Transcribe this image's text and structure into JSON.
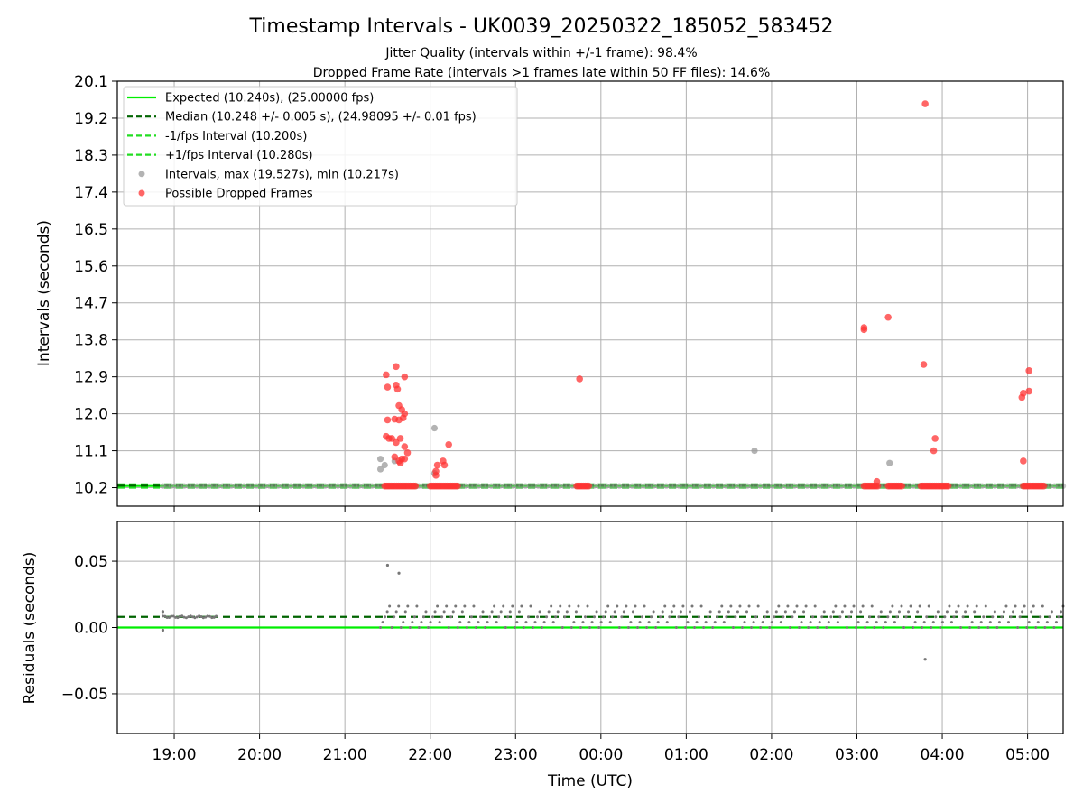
{
  "title": "Timestamp Intervals - UK0039_20250322_185052_583452",
  "subtitle_jitter": "Jitter Quality (intervals within +/-1 frame): 98.4%",
  "subtitle_dropped": "Dropped Frame Rate (intervals >1 frames late within 50 FF files): 14.6%",
  "colors": {
    "expected": "#00ee00",
    "median": "#006400",
    "bounds": "#22dd22",
    "interval_points": "#999999",
    "dropped_points": "#ff3333",
    "residual_points": "#777777",
    "grid": "#b0b0b0"
  },
  "chart_data": [
    {
      "type": "scatter",
      "ylabel": "Intervals (seconds)",
      "xlim": [
        "18:20",
        "05:25"
      ],
      "ylim": [
        9.75,
        20.1
      ],
      "yticks": [
        "10.2",
        "11.1",
        "12.0",
        "12.9",
        "13.8",
        "14.7",
        "15.6",
        "16.5",
        "17.4",
        "18.3",
        "19.2",
        "20.1"
      ],
      "grid": true,
      "legend_placement": "top-left",
      "legend": [
        "Expected (10.240s), (25.00000 fps)",
        "Median (10.248 +/- 0.005 s), (24.98095 +/- 0.01 fps)",
        "-1/fps Interval (10.200s)",
        "+1/fps Interval (10.280s)",
        "Intervals, max (19.527s), min (10.217s)",
        "Possible Dropped Frames"
      ],
      "lines": {
        "expected": 10.24,
        "median": 10.248,
        "lower": 10.2,
        "upper": 10.28
      },
      "series": [
        {
          "name": "Intervals, max (19.527s), min (10.217s)",
          "points": [
            [
              "21:25",
              10.9
            ],
            [
              "21:25",
              10.65
            ],
            [
              "21:28",
              10.75
            ],
            [
              "22:03",
              11.65
            ],
            [
              "22:03",
              10.55
            ],
            [
              "01:48",
              11.1
            ],
            [
              "03:23",
              10.8
            ],
            [
              "21:35",
              10.85
            ]
          ]
        },
        {
          "name": "Possible Dropped Frames",
          "points": [
            [
              "21:29",
              12.95
            ],
            [
              "21:30",
              12.65
            ],
            [
              "21:36",
              13.15
            ],
            [
              "21:36",
              12.7
            ],
            [
              "21:37",
              12.6
            ],
            [
              "21:42",
              12.9
            ],
            [
              "21:38",
              12.2
            ],
            [
              "21:40",
              12.1
            ],
            [
              "21:42",
              12.0
            ],
            [
              "21:41",
              11.9
            ],
            [
              "21:30",
              11.85
            ],
            [
              "21:35",
              11.87
            ],
            [
              "21:38",
              11.85
            ],
            [
              "21:29",
              11.45
            ],
            [
              "21:31",
              11.4
            ],
            [
              "21:33",
              11.4
            ],
            [
              "21:36",
              11.3
            ],
            [
              "21:39",
              11.4
            ],
            [
              "21:42",
              11.2
            ],
            [
              "21:44",
              11.05
            ],
            [
              "21:35",
              10.95
            ],
            [
              "21:38",
              10.85
            ],
            [
              "21:40",
              10.9
            ],
            [
              "21:42",
              10.9
            ],
            [
              "21:39",
              10.8
            ],
            [
              "22:05",
              10.75
            ],
            [
              "22:09",
              10.85
            ],
            [
              "22:10",
              10.75
            ],
            [
              "22:04",
              10.6
            ],
            [
              "22:04",
              10.5
            ],
            [
              "22:13",
              11.25
            ],
            [
              "23:45",
              12.85
            ],
            [
              "03:05",
              14.1
            ],
            [
              "03:05",
              14.05
            ],
            [
              "03:22",
              14.35
            ],
            [
              "03:47",
              13.2
            ],
            [
              "03:48",
              19.55
            ],
            [
              "03:55",
              11.4
            ],
            [
              "03:54",
              11.1
            ],
            [
              "04:56",
              12.4
            ],
            [
              "04:57",
              12.5
            ],
            [
              "05:01",
              13.05
            ],
            [
              "05:01",
              12.55
            ],
            [
              "04:57",
              10.85
            ],
            [
              "03:14",
              10.35
            ]
          ],
          "baseline_clusters": [
            [
              "21:28",
              "21:50",
              10.24
            ],
            [
              "22:00",
              "22:20",
              10.24
            ],
            [
              "23:43",
              "23:52",
              10.24
            ],
            [
              "03:05",
              "03:15",
              10.24
            ],
            [
              "03:22",
              "03:32",
              10.24
            ],
            [
              "03:45",
              "04:05",
              10.24
            ],
            [
              "04:57",
              "05:12",
              10.24
            ]
          ]
        }
      ]
    },
    {
      "type": "scatter",
      "xlabel": "Time (UTC)",
      "ylabel": "Residuals (seconds)",
      "xlim": [
        "18:20",
        "05:25"
      ],
      "ylim": [
        -0.08,
        0.08
      ],
      "yticks": [
        "−0.05",
        "0.00",
        "0.05"
      ],
      "xticks": [
        "19:00",
        "20:00",
        "21:00",
        "22:00",
        "23:00",
        "00:00",
        "01:00",
        "02:00",
        "03:00",
        "04:00",
        "05:00"
      ],
      "grid": true,
      "lines": {
        "expected": 0.0,
        "median": 0.008
      },
      "series": [
        {
          "name": "residuals",
          "early_band": [
            "18:52",
            "19:30",
            0.008
          ],
          "dense_band": [
            "21:25",
            "05:25",
            0.0,
            0.016
          ],
          "outliers": [
            [
              "21:30",
              0.047
            ],
            [
              "21:38",
              0.041
            ],
            [
              "03:48",
              -0.024
            ],
            [
              "18:52",
              -0.002
            ],
            [
              "18:52",
              0.012
            ]
          ]
        }
      ]
    }
  ]
}
